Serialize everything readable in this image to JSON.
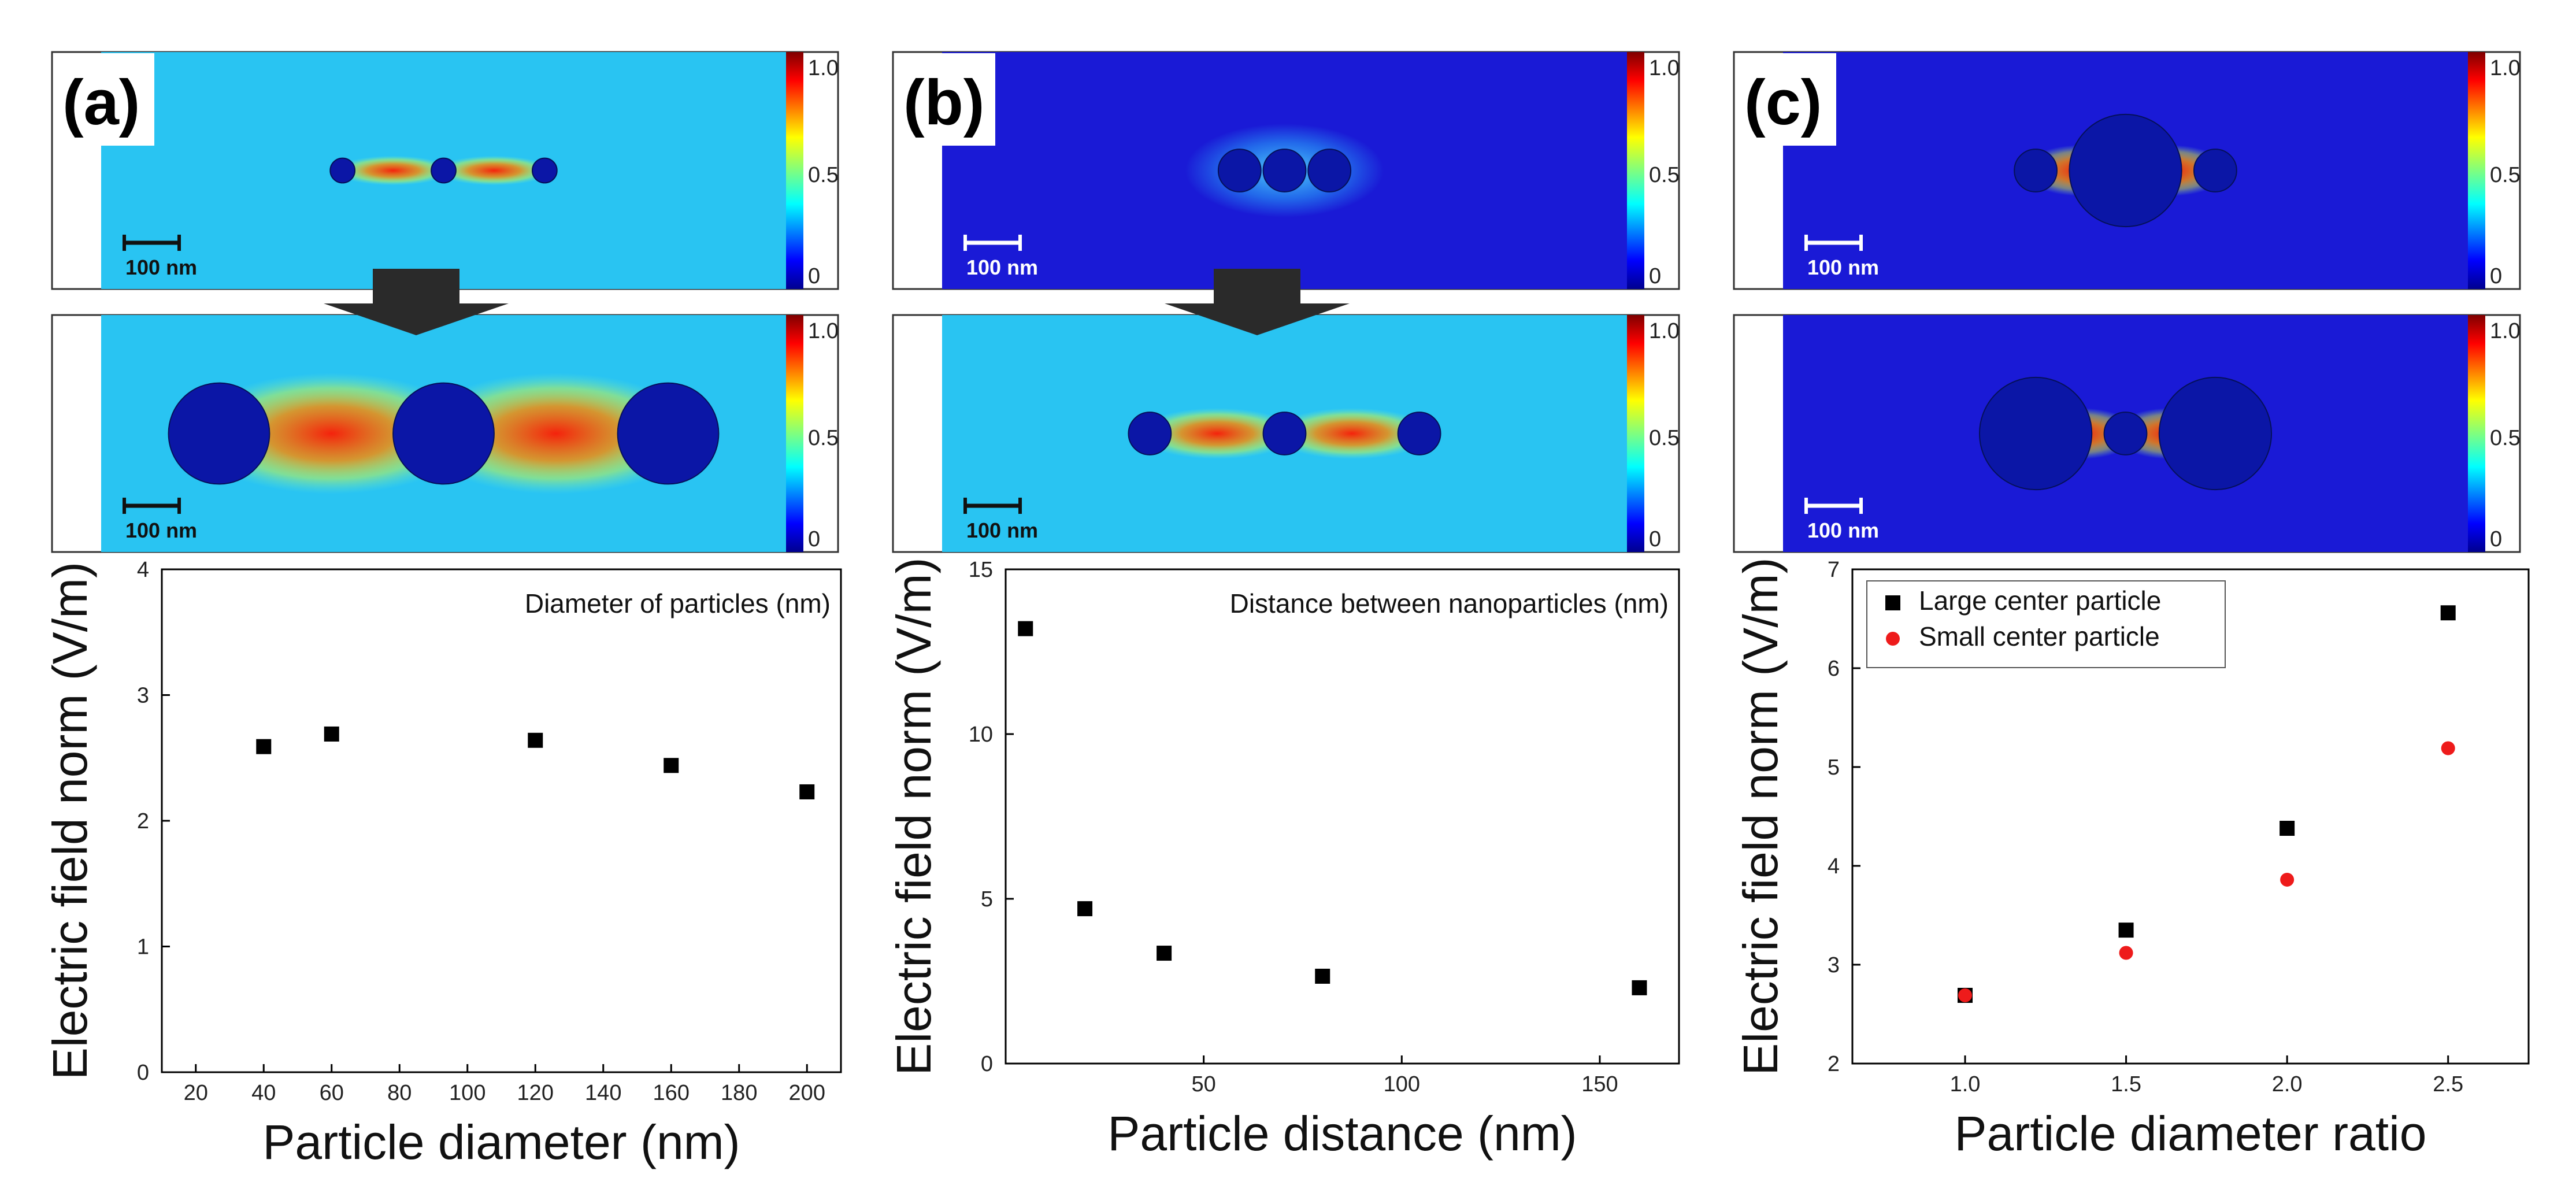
{
  "colorbar_ticks": [
    "1.0",
    "0.5",
    "0"
  ],
  "scale_bar_label": "100 nm",
  "colors": {
    "background_field": "#29c4f2",
    "dark_field": "#1a1ad6",
    "particle": "#0b16a6",
    "hot": "#ff2400",
    "marker_black": "#000000",
    "marker_red": "#ee1b1b",
    "arrow": "#2a2a2a"
  },
  "panels": [
    {
      "label": "(a)",
      "maps": [
        {
          "background": "light",
          "particles": [
            {
              "x": -18,
              "r": 2.2
            },
            {
              "x": 0,
              "r": 2.2
            },
            {
              "x": 18,
              "r": 2.2
            }
          ],
          "hot_gaps": true
        },
        {
          "background": "light",
          "particles": [
            {
              "x": -40,
              "r": 9
            },
            {
              "x": 0,
              "r": 9
            },
            {
              "x": 40,
              "r": 9
            }
          ],
          "hot_gaps": true
        }
      ],
      "show_arrow": true
    },
    {
      "label": "(b)",
      "maps": [
        {
          "background": "dark",
          "particles": [
            {
              "x": -8,
              "r": 3.8
            },
            {
              "x": 0,
              "r": 3.8
            },
            {
              "x": 8,
              "r": 3.8
            }
          ],
          "hot_gaps": false
        },
        {
          "background": "light",
          "particles": [
            {
              "x": -24,
              "r": 3.8
            },
            {
              "x": 0,
              "r": 3.8
            },
            {
              "x": 24,
              "r": 3.8
            }
          ],
          "hot_gaps": true
        }
      ],
      "show_arrow": true
    },
    {
      "label": "(c)",
      "maps": [
        {
          "background": "dark",
          "particles": [
            {
              "x": -16,
              "r": 3.8
            },
            {
              "x": 0,
              "r": 10
            },
            {
              "x": 16,
              "r": 3.8
            }
          ],
          "hot_gaps": true
        },
        {
          "background": "dark",
          "particles": [
            {
              "x": -16,
              "r": 10
            },
            {
              "x": 0,
              "r": 3.8
            },
            {
              "x": 16,
              "r": 10
            }
          ],
          "hot_gaps": true
        }
      ],
      "show_arrow": false
    }
  ],
  "chart_data": [
    {
      "type": "scatter",
      "annotation": "Diameter of particles (nm)",
      "xlabel": "Particle diameter (nm)",
      "ylabel": "Electric field norm (V/m)",
      "xlim": [
        10,
        210
      ],
      "ylim": [
        0,
        4
      ],
      "xticks": [
        20,
        40,
        60,
        80,
        100,
        120,
        140,
        160,
        180,
        200
      ],
      "yticks": [
        0,
        1,
        2,
        3,
        4
      ],
      "series": [
        {
          "name": "",
          "marker": "square",
          "color": "#000000",
          "x": [
            40,
            60,
            120,
            160,
            200
          ],
          "y": [
            2.59,
            2.69,
            2.64,
            2.44,
            2.23
          ]
        }
      ]
    },
    {
      "type": "scatter",
      "annotation": "Distance between nanoparticles (nm)",
      "xlabel": "Particle distance (nm)",
      "ylabel": "Electric field norm (V/m)",
      "xlim": [
        0,
        170
      ],
      "ylim": [
        0,
        15
      ],
      "xticks": [
        50,
        100,
        150
      ],
      "yticks": [
        0,
        5,
        10,
        15
      ],
      "series": [
        {
          "name": "",
          "marker": "square",
          "color": "#000000",
          "x": [
            5,
            20,
            40,
            80,
            160
          ],
          "y": [
            13.2,
            4.7,
            3.35,
            2.65,
            2.3
          ]
        }
      ]
    },
    {
      "type": "scatter",
      "annotation": "",
      "xlabel": "Particle diameter ratio",
      "ylabel": "Electric field norm (V/m)",
      "xlim": [
        0.65,
        2.75
      ],
      "ylim": [
        2,
        7
      ],
      "xticks": [
        1.0,
        1.5,
        2.0,
        2.5
      ],
      "xtick_labels": [
        "1.0",
        "1.5",
        "2.0",
        "2.5"
      ],
      "yticks": [
        2,
        3,
        4,
        5,
        6,
        7
      ],
      "legend": "top-left",
      "series": [
        {
          "name": "Large center particle",
          "marker": "square",
          "color": "#000000",
          "x": [
            1.0,
            1.5,
            2.0,
            2.5
          ],
          "y": [
            2.69,
            3.35,
            4.38,
            6.56
          ]
        },
        {
          "name": "Small center particle",
          "marker": "circle",
          "color": "#ee1b1b",
          "x": [
            1.0,
            1.5,
            2.0,
            2.5
          ],
          "y": [
            2.69,
            3.12,
            3.86,
            5.19
          ]
        }
      ]
    }
  ]
}
